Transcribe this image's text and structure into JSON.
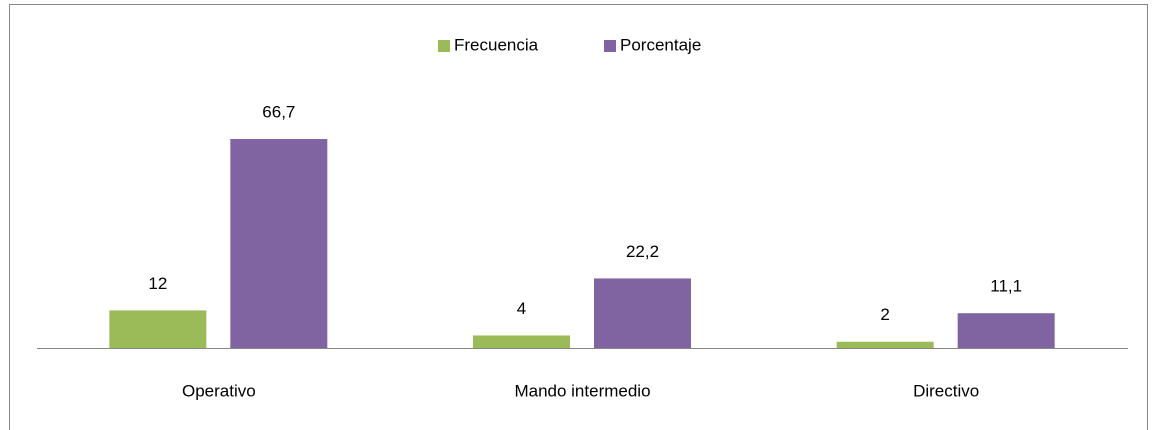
{
  "chart_data": {
    "type": "bar",
    "categories": [
      "Operativo",
      "Mando intermedio",
      "Directivo"
    ],
    "series": [
      {
        "name": "Frecuencia",
        "color": "#9bbb59",
        "values": [
          12,
          4,
          2
        ]
      },
      {
        "name": "Porcentaje",
        "color": "#8064a2",
        "values": [
          66.7,
          22.2,
          11.1
        ],
        "value_labels": [
          "66,7",
          "22,2",
          "11,1"
        ]
      }
    ],
    "legend": "top"
  }
}
